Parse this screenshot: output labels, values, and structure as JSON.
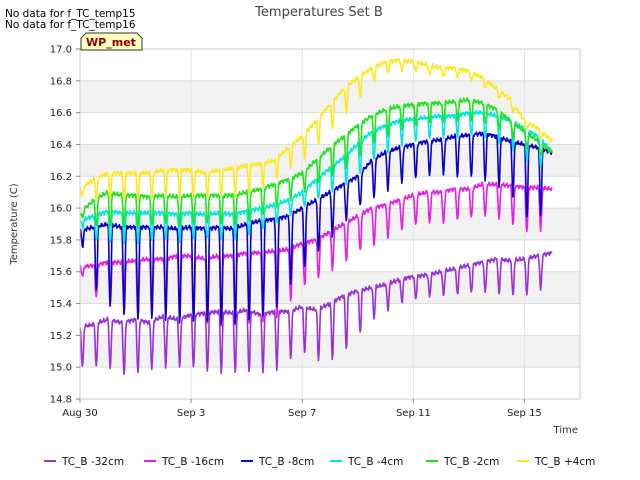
{
  "notices": [
    "No data for f_TC_temp15",
    "No data for f_TC_temp16"
  ],
  "badge": "WP_met",
  "chart_data": {
    "type": "line",
    "title": "Temperatures Set B",
    "xlabel": "Time",
    "ylabel": "Temperature (C)",
    "x_ticks": [
      "Aug 30",
      "Sep 3",
      "Sep 7",
      "Sep 11",
      "Sep 15"
    ],
    "x_tick_days": [
      0,
      4,
      8,
      12,
      16
    ],
    "xlim_days": [
      0,
      18
    ],
    "ylim": [
      14.8,
      17.0
    ],
    "y_ticks": [
      14.8,
      15.0,
      15.2,
      15.4,
      15.6,
      15.8,
      16.0,
      16.2,
      16.4,
      16.6,
      16.8,
      17.0
    ],
    "grid": true,
    "legend_position": "bottom",
    "series": [
      {
        "name": "TC_B -32cm",
        "color": "#9b30d9",
        "days": [
          0,
          0.5,
          1,
          1.5,
          2,
          2.5,
          3,
          3.5,
          4,
          4.5,
          5,
          5.5,
          6,
          6.5,
          7,
          7.5,
          8,
          8.5,
          9,
          9.5,
          10,
          10.5,
          11,
          11.5,
          12,
          12.5,
          13,
          13.5,
          14,
          14.5,
          15,
          15.5,
          16,
          16.5,
          17
        ],
        "peaks": [
          15.25,
          15.27,
          15.3,
          15.28,
          15.3,
          15.28,
          15.32,
          15.3,
          15.33,
          15.34,
          15.35,
          15.34,
          15.36,
          15.33,
          15.35,
          15.35,
          15.38,
          15.36,
          15.4,
          15.45,
          15.48,
          15.5,
          15.52,
          15.55,
          15.57,
          15.58,
          15.6,
          15.62,
          15.64,
          15.66,
          15.68,
          15.67,
          15.68,
          15.7,
          15.72
        ],
        "troughs": [
          14.99,
          15.0,
          15.0,
          14.95,
          14.95,
          14.98,
          15.0,
          15.0,
          15.0,
          14.98,
          14.97,
          14.97,
          14.97,
          14.97,
          14.98,
          15.05,
          15.1,
          15.05,
          15.05,
          15.1,
          15.2,
          15.3,
          15.35,
          15.4,
          15.42,
          15.44,
          15.45,
          15.45,
          15.46,
          15.47,
          15.46,
          15.44,
          15.44,
          15.46,
          15.6
        ]
      },
      {
        "name": "TC_B -16cm",
        "color": "#e61ee6",
        "days": [
          0,
          0.5,
          1,
          1.5,
          2,
          2.5,
          3,
          3.5,
          4,
          4.5,
          5,
          5.5,
          6,
          6.5,
          7,
          7.5,
          8,
          8.5,
          9,
          9.5,
          10,
          10.5,
          11,
          11.5,
          12,
          12.5,
          13,
          13.5,
          14,
          14.5,
          15,
          15.5,
          16,
          16.5,
          17
        ],
        "peaks": [
          15.63,
          15.64,
          15.66,
          15.66,
          15.67,
          15.68,
          15.68,
          15.7,
          15.7,
          15.68,
          15.7,
          15.7,
          15.72,
          15.72,
          15.73,
          15.74,
          15.78,
          15.8,
          15.85,
          15.9,
          15.95,
          16.0,
          16.02,
          16.05,
          16.08,
          16.1,
          16.1,
          16.12,
          16.12,
          16.15,
          16.15,
          16.14,
          16.13,
          16.13,
          16.12
        ],
        "troughs": [
          15.6,
          15.45,
          15.4,
          15.35,
          15.3,
          15.32,
          15.33,
          15.3,
          15.3,
          15.28,
          15.27,
          15.27,
          15.27,
          15.28,
          15.3,
          15.4,
          15.5,
          15.55,
          15.6,
          15.65,
          15.72,
          15.75,
          15.8,
          15.85,
          15.88,
          15.9,
          15.9,
          15.92,
          15.93,
          15.95,
          15.94,
          15.9,
          15.85,
          15.82,
          16.05
        ]
      },
      {
        "name": "TC_B -8cm",
        "color": "#0a00c8",
        "days": [
          0,
          0.5,
          1,
          1.5,
          2,
          2.5,
          3,
          3.5,
          4,
          4.5,
          5,
          5.5,
          6,
          6.5,
          7,
          7.5,
          8,
          8.5,
          9,
          9.5,
          10,
          10.5,
          11,
          11.5,
          12,
          12.5,
          13,
          13.5,
          14,
          14.5,
          15,
          15.5,
          16,
          16.5,
          17
        ],
        "peaks": [
          15.86,
          15.88,
          15.9,
          15.88,
          15.88,
          15.88,
          15.88,
          15.87,
          15.88,
          15.87,
          15.88,
          15.87,
          15.9,
          15.92,
          15.93,
          15.95,
          16.0,
          16.05,
          16.1,
          16.15,
          16.2,
          16.3,
          16.35,
          16.38,
          16.4,
          16.42,
          16.43,
          16.45,
          16.46,
          16.47,
          16.45,
          16.42,
          16.4,
          16.38,
          16.35
        ],
        "troughs": [
          15.82,
          15.5,
          15.4,
          15.35,
          15.3,
          15.3,
          15.3,
          15.28,
          15.28,
          15.28,
          15.27,
          15.27,
          15.28,
          15.3,
          15.35,
          15.5,
          15.6,
          15.7,
          15.8,
          15.9,
          16.0,
          16.05,
          16.1,
          16.15,
          16.18,
          16.2,
          16.22,
          16.2,
          16.2,
          16.18,
          16.15,
          16.1,
          15.95,
          15.9,
          16.25
        ]
      },
      {
        "name": "TC_B -4cm",
        "color": "#00e6e6",
        "days": [
          0,
          0.5,
          1,
          1.5,
          2,
          2.5,
          3,
          3.5,
          4,
          4.5,
          5,
          5.5,
          6,
          6.5,
          7,
          7.5,
          8,
          8.5,
          9,
          9.5,
          10,
          10.5,
          11,
          11.5,
          12,
          12.5,
          13,
          13.5,
          14,
          14.5,
          15,
          15.5,
          16,
          16.5,
          17
        ],
        "peaks": [
          15.92,
          15.95,
          15.98,
          15.97,
          15.97,
          15.97,
          15.97,
          15.96,
          15.97,
          15.96,
          15.97,
          15.96,
          15.98,
          16.0,
          16.02,
          16.05,
          16.1,
          16.18,
          16.25,
          16.32,
          16.4,
          16.48,
          16.52,
          16.55,
          16.56,
          16.57,
          16.58,
          16.58,
          16.6,
          16.6,
          16.58,
          16.55,
          16.5,
          16.45,
          16.35
        ],
        "troughs": [
          15.9,
          15.8,
          15.78,
          15.78,
          15.77,
          15.78,
          15.8,
          15.78,
          15.8,
          15.8,
          15.8,
          15.8,
          15.82,
          15.85,
          15.9,
          15.95,
          16.0,
          16.05,
          16.1,
          16.15,
          16.2,
          16.3,
          16.35,
          16.4,
          16.42,
          16.44,
          16.45,
          16.45,
          16.46,
          16.45,
          16.42,
          16.38,
          16.3,
          16.25,
          16.28
        ]
      },
      {
        "name": "TC_B -2cm",
        "color": "#1ee61e",
        "days": [
          0,
          0.5,
          1,
          1.5,
          2,
          2.5,
          3,
          3.5,
          4,
          4.5,
          5,
          5.5,
          6,
          6.5,
          7,
          7.5,
          8,
          8.5,
          9,
          9.5,
          10,
          10.5,
          11,
          11.5,
          12,
          12.5,
          13,
          13.5,
          14,
          14.5,
          15,
          15.5,
          16,
          16.5,
          17
        ],
        "peaks": [
          15.97,
          16.05,
          16.1,
          16.08,
          16.08,
          16.07,
          16.08,
          16.07,
          16.08,
          16.08,
          16.08,
          16.08,
          16.1,
          16.12,
          16.15,
          16.18,
          16.22,
          16.3,
          16.38,
          16.45,
          16.52,
          16.58,
          16.62,
          16.64,
          16.65,
          16.66,
          16.66,
          16.67,
          16.68,
          16.66,
          16.62,
          16.55,
          16.48,
          16.42,
          16.35
        ],
        "troughs": [
          15.95,
          15.88,
          15.87,
          15.88,
          15.87,
          15.88,
          15.9,
          15.88,
          15.9,
          15.9,
          15.9,
          15.9,
          15.92,
          15.95,
          16.0,
          16.05,
          16.1,
          16.15,
          16.2,
          16.25,
          16.32,
          16.4,
          16.45,
          16.5,
          16.52,
          16.53,
          16.54,
          16.55,
          16.55,
          16.53,
          16.5,
          16.45,
          16.38,
          16.33,
          16.3
        ]
      },
      {
        "name": "TC_B +4cm",
        "color": "#ffe81e",
        "days": [
          0,
          0.5,
          1,
          1.5,
          2,
          2.5,
          3,
          3.5,
          4,
          4.5,
          5,
          5.5,
          6,
          6.5,
          7,
          7.5,
          8,
          8.5,
          9,
          9.5,
          10,
          10.5,
          11,
          11.5,
          12,
          12.5,
          13,
          13.5,
          14,
          14.5,
          15,
          15.5,
          16,
          16.5,
          17
        ],
        "peaks": [
          16.12,
          16.18,
          16.22,
          16.22,
          16.22,
          16.22,
          16.24,
          16.24,
          16.24,
          16.22,
          16.24,
          16.25,
          16.27,
          16.28,
          16.3,
          16.38,
          16.45,
          16.55,
          16.65,
          16.75,
          16.82,
          16.88,
          16.92,
          16.93,
          16.92,
          16.9,
          16.88,
          16.88,
          16.86,
          16.82,
          16.75,
          16.68,
          16.55,
          16.5,
          16.42
        ],
        "troughs": [
          16.08,
          16.05,
          16.05,
          16.06,
          16.05,
          16.06,
          16.08,
          16.07,
          16.08,
          16.07,
          16.08,
          16.08,
          16.1,
          16.12,
          16.18,
          16.25,
          16.3,
          16.38,
          16.48,
          16.58,
          16.68,
          16.78,
          16.84,
          16.86,
          16.86,
          16.84,
          16.82,
          16.82,
          16.8,
          16.76,
          16.7,
          16.62,
          16.5,
          16.45,
          16.35
        ]
      }
    ]
  }
}
